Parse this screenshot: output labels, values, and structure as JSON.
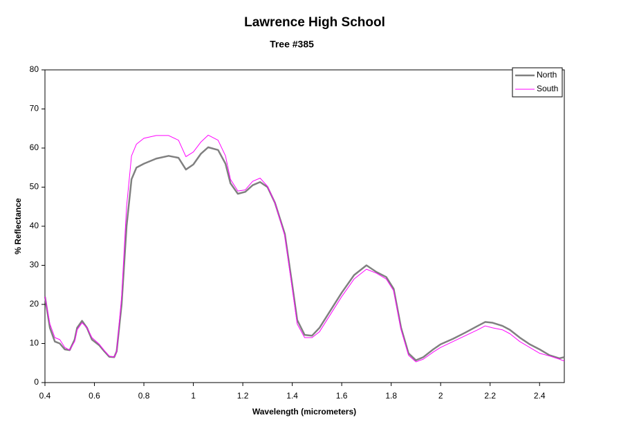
{
  "chart_data": {
    "type": "line",
    "title": "Lawrence High School",
    "subtitle": "Tree #385",
    "x_label": "Wavelength (micrometers)",
    "y_label": "% Reflectance",
    "x": [
      0.4,
      0.42,
      0.44,
      0.46,
      0.48,
      0.5,
      0.52,
      0.53,
      0.55,
      0.57,
      0.59,
      0.62,
      0.64,
      0.66,
      0.68,
      0.69,
      0.71,
      0.73,
      0.75,
      0.77,
      0.8,
      0.85,
      0.9,
      0.94,
      0.97,
      1.0,
      1.03,
      1.06,
      1.1,
      1.13,
      1.15,
      1.18,
      1.21,
      1.24,
      1.27,
      1.3,
      1.33,
      1.37,
      1.4,
      1.42,
      1.45,
      1.48,
      1.51,
      1.55,
      1.6,
      1.65,
      1.7,
      1.74,
      1.78,
      1.81,
      1.84,
      1.87,
      1.9,
      1.93,
      1.97,
      2.0,
      2.05,
      2.1,
      2.15,
      2.18,
      2.21,
      2.25,
      2.28,
      2.32,
      2.36,
      2.4,
      2.44,
      2.48,
      2.5
    ],
    "series": [
      {
        "name": "North",
        "color": "#808080",
        "values": [
          22,
          14,
          10.5,
          10,
          8.5,
          8.3,
          11,
          14,
          15.8,
          14,
          11,
          9.5,
          8,
          6.6,
          6.5,
          8,
          20,
          40,
          52,
          55,
          56,
          57.3,
          58,
          57.5,
          54.5,
          55.8,
          58.5,
          60.2,
          59.5,
          56,
          51,
          48.3,
          48.8,
          50.5,
          51.3,
          50,
          46,
          38,
          25,
          16,
          12.2,
          12,
          14,
          18,
          23,
          27.5,
          30,
          28.3,
          27,
          24,
          14,
          7.5,
          5.7,
          6.5,
          8.5,
          9.8,
          11.2,
          12.8,
          14.5,
          15.5,
          15.3,
          14.5,
          13.5,
          11.5,
          9.8,
          8.5,
          7,
          6.2,
          6.5
        ]
      },
      {
        "name": "South",
        "color": "#ff00ff",
        "values": [
          22,
          15,
          11.5,
          11,
          9,
          8.3,
          10.5,
          13.5,
          15.3,
          14,
          11.5,
          9.8,
          8.2,
          6.8,
          6.5,
          8,
          22,
          45,
          58,
          61,
          62.5,
          63.2,
          63.2,
          62,
          57.8,
          59,
          61.5,
          63.3,
          62,
          58,
          52,
          49,
          49.3,
          51.5,
          52.3,
          50.2,
          46,
          37.5,
          24,
          15,
          11.5,
          11.5,
          13,
          17,
          22,
          26.5,
          29,
          28,
          26.5,
          23.5,
          13.5,
          7,
          5.3,
          6,
          7.8,
          9,
          10.5,
          12,
          13.5,
          14.5,
          14,
          13.5,
          12.5,
          10.5,
          9,
          7.5,
          6.8,
          6,
          5.5
        ]
      }
    ],
    "xlim": [
      0.4,
      2.5
    ],
    "xticks": [
      0.4,
      0.6,
      0.8,
      1,
      1.2,
      1.4,
      1.6,
      1.8,
      2,
      2.2,
      2.4
    ],
    "ylim": [
      0,
      80
    ],
    "yticks": [
      0,
      10,
      20,
      30,
      40,
      50,
      60,
      70,
      80
    ],
    "legend": "upper right",
    "grid": false
  }
}
